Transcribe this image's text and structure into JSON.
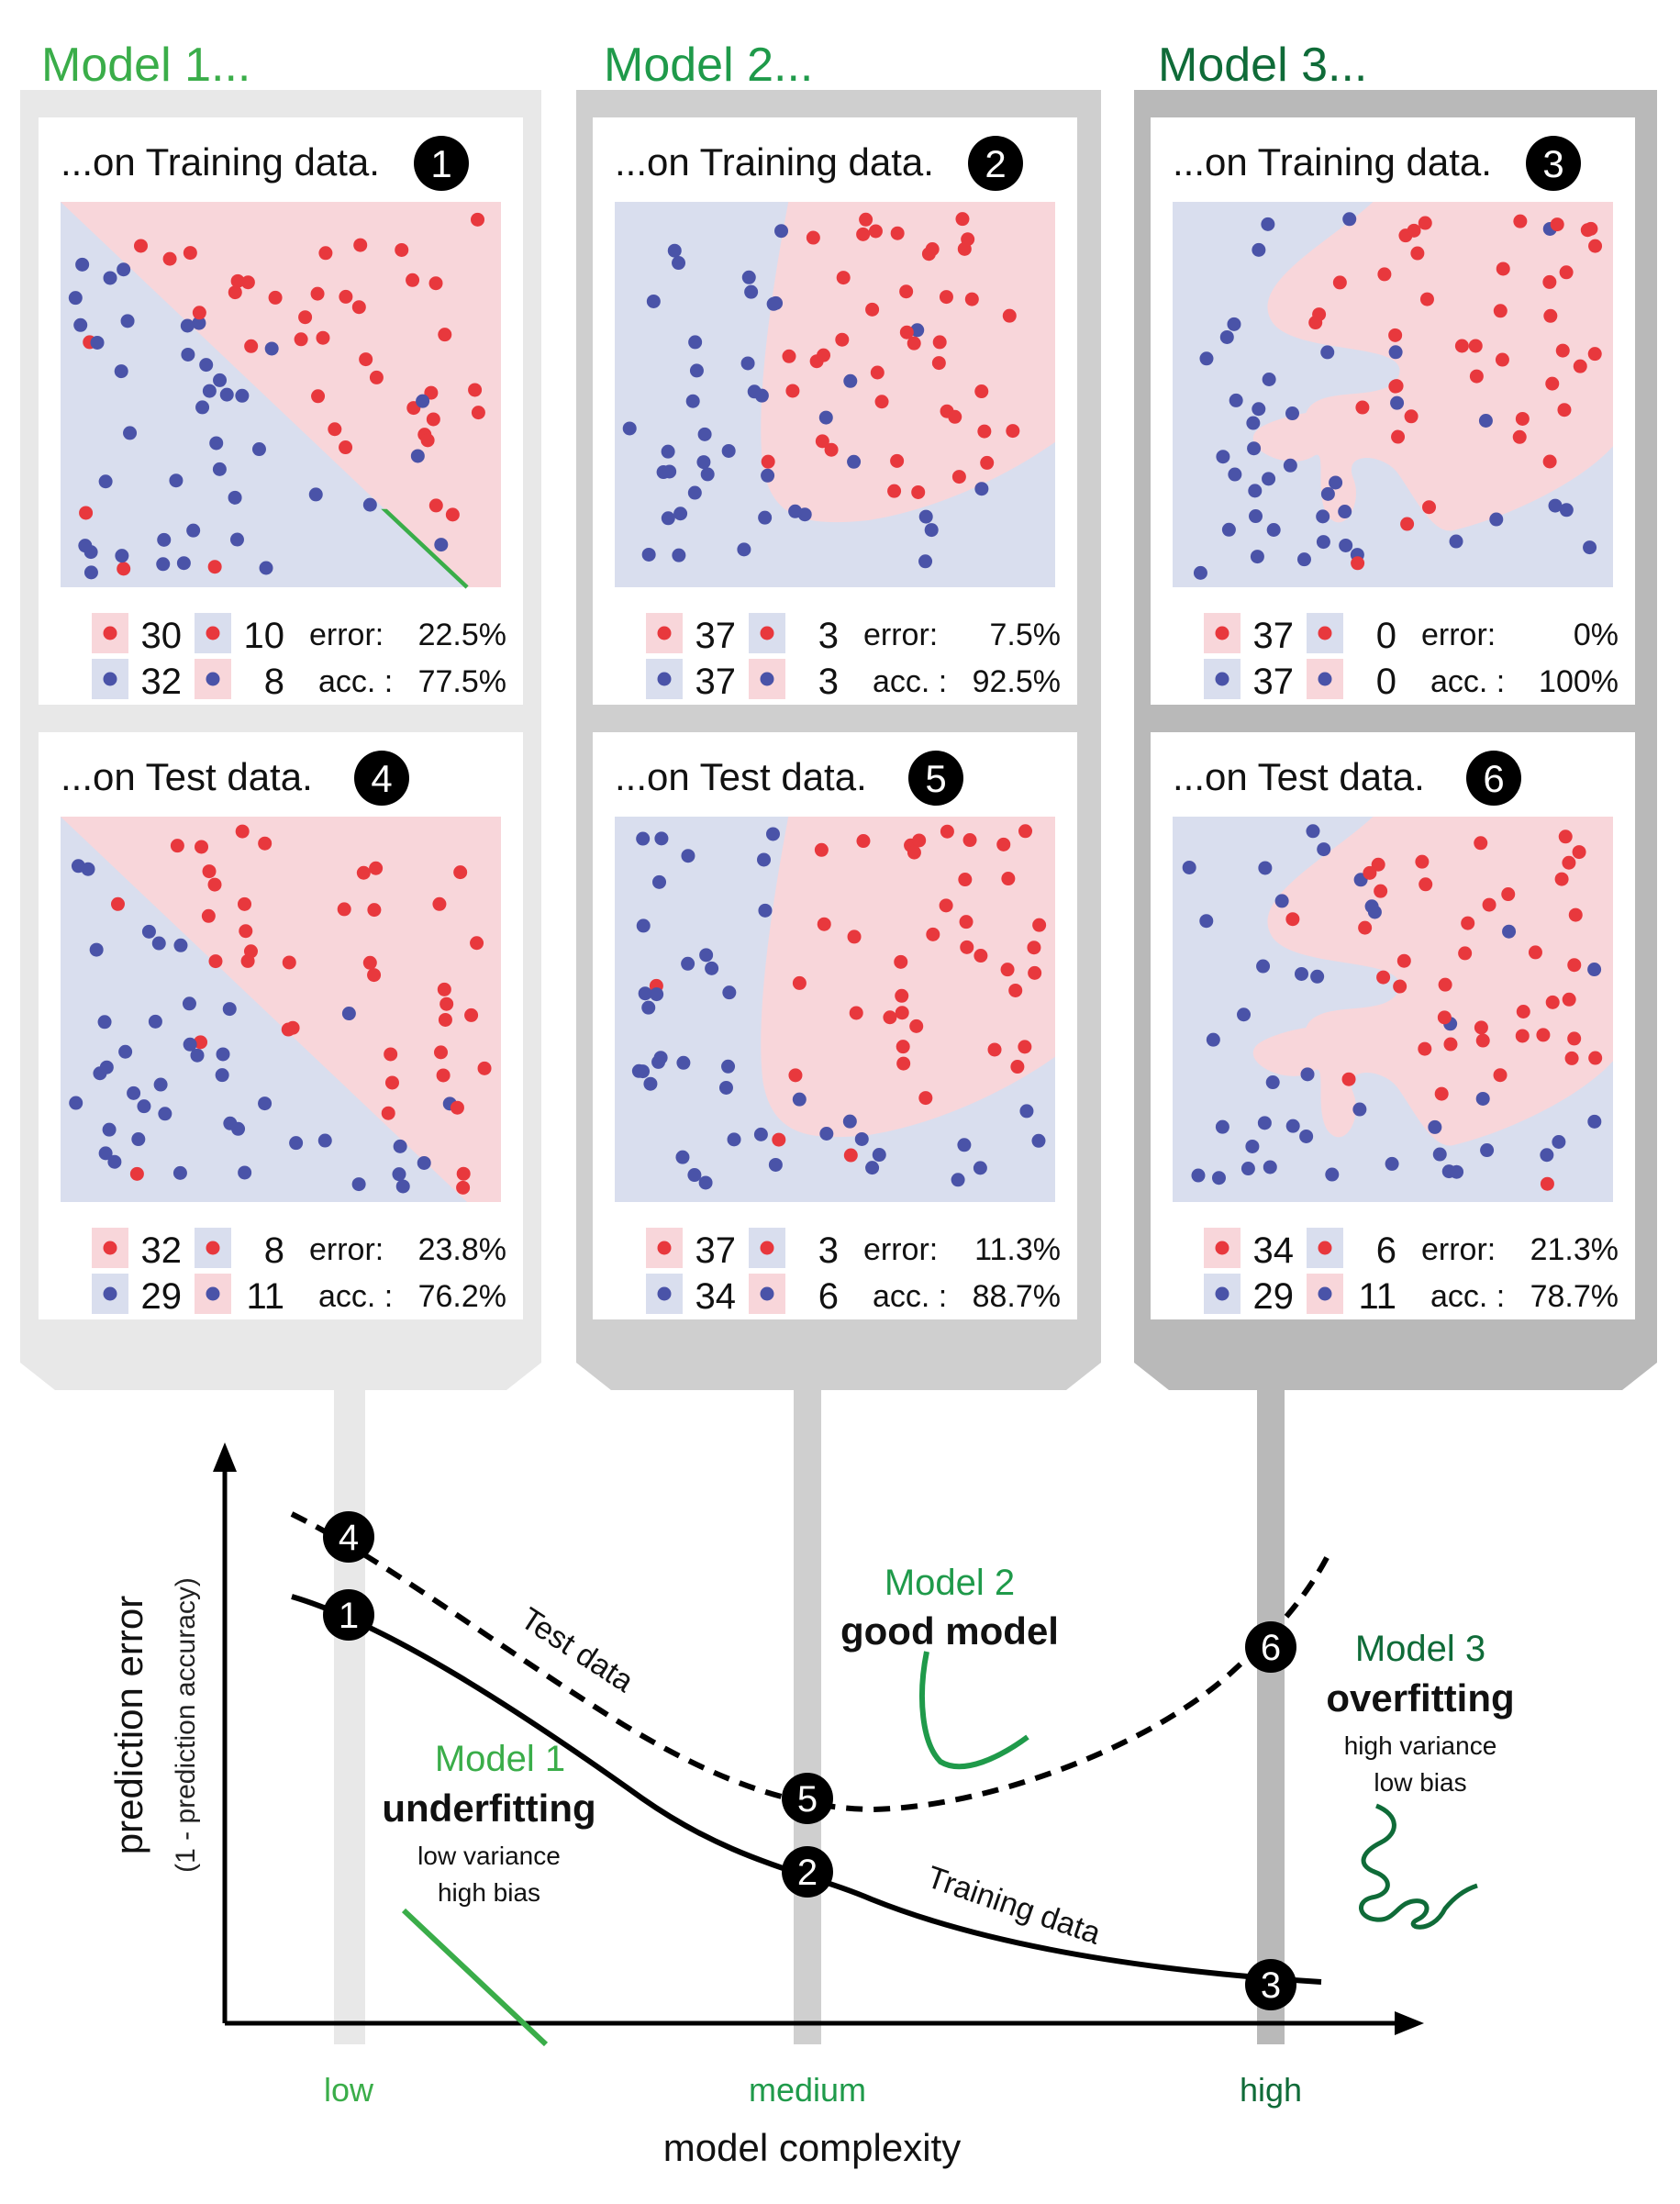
{
  "colors": {
    "green_light": "#3aad49",
    "green_mid": "#1f9a4a",
    "green_dark": "#0f6b38",
    "red_point": "#e8383d",
    "blue_point": "#4a53a8",
    "red_region": "#f8d6da",
    "blue_region": "#d9deee",
    "col1_frame": "#e8e8e8",
    "col2_frame": "#cfcfcf",
    "col3_frame": "#b9b9b9"
  },
  "columns": [
    {
      "title": "Model 1...",
      "boundary": "linear",
      "train": {
        "heading": "...on Training data.",
        "number": "1",
        "counts": [
          "30",
          "10",
          "32",
          "8"
        ],
        "error_label": "error:",
        "error_value": "22.5%",
        "acc_label": "acc. :",
        "acc_value": "77.5%"
      },
      "test": {
        "heading": "...on Test data.",
        "number": "4",
        "counts": [
          "32",
          "8",
          "29",
          "11"
        ],
        "error_label": "error:",
        "error_value": "23.8%",
        "acc_label": "acc. :",
        "acc_value": "76.2%"
      }
    },
    {
      "title": "Model 2...",
      "boundary": "curved",
      "train": {
        "heading": "...on Training data.",
        "number": "2",
        "counts": [
          "37",
          "3",
          "37",
          "3"
        ],
        "error_label": "error:",
        "error_value": "7.5%",
        "acc_label": "acc. :",
        "acc_value": "92.5%"
      },
      "test": {
        "heading": "...on Test data.",
        "number": "5",
        "counts": [
          "37",
          "3",
          "34",
          "6"
        ],
        "error_label": "error:",
        "error_value": "11.3%",
        "acc_label": "acc. :",
        "acc_value": "88.7%"
      }
    },
    {
      "title": "Model 3...",
      "boundary": "wiggly",
      "train": {
        "heading": "...on Training data.",
        "number": "3",
        "counts": [
          "37",
          "0",
          "37",
          "0"
        ],
        "error_label": "error:",
        "error_value": "0%",
        "acc_label": "acc. :",
        "acc_value": "100%"
      },
      "test": {
        "heading": "...on Test data.",
        "number": "6",
        "counts": [
          "34",
          "6",
          "29",
          "11"
        ],
        "error_label": "error:",
        "error_value": "21.3%",
        "acc_label": "acc. :",
        "acc_value": "78.7%"
      }
    }
  ],
  "bottom": {
    "ylabel": "prediction error",
    "ylabel_sub": "(1 - prediction accuracy)",
    "xlabel": "model complexity",
    "x_ticks": [
      "low",
      "medium",
      "high"
    ],
    "curve_test_label": "Test data",
    "curve_train_label": "Training data",
    "markers": [
      "1",
      "2",
      "3",
      "4",
      "5",
      "6"
    ],
    "model1": {
      "name": "Model 1",
      "verdict": "underfitting",
      "line1": "low variance",
      "line2": "high bias"
    },
    "model2": {
      "name": "Model 2",
      "verdict": "good model"
    },
    "model3": {
      "name": "Model 3",
      "verdict": "overfitting",
      "line1": "high variance",
      "line2": "low bias"
    }
  }
}
